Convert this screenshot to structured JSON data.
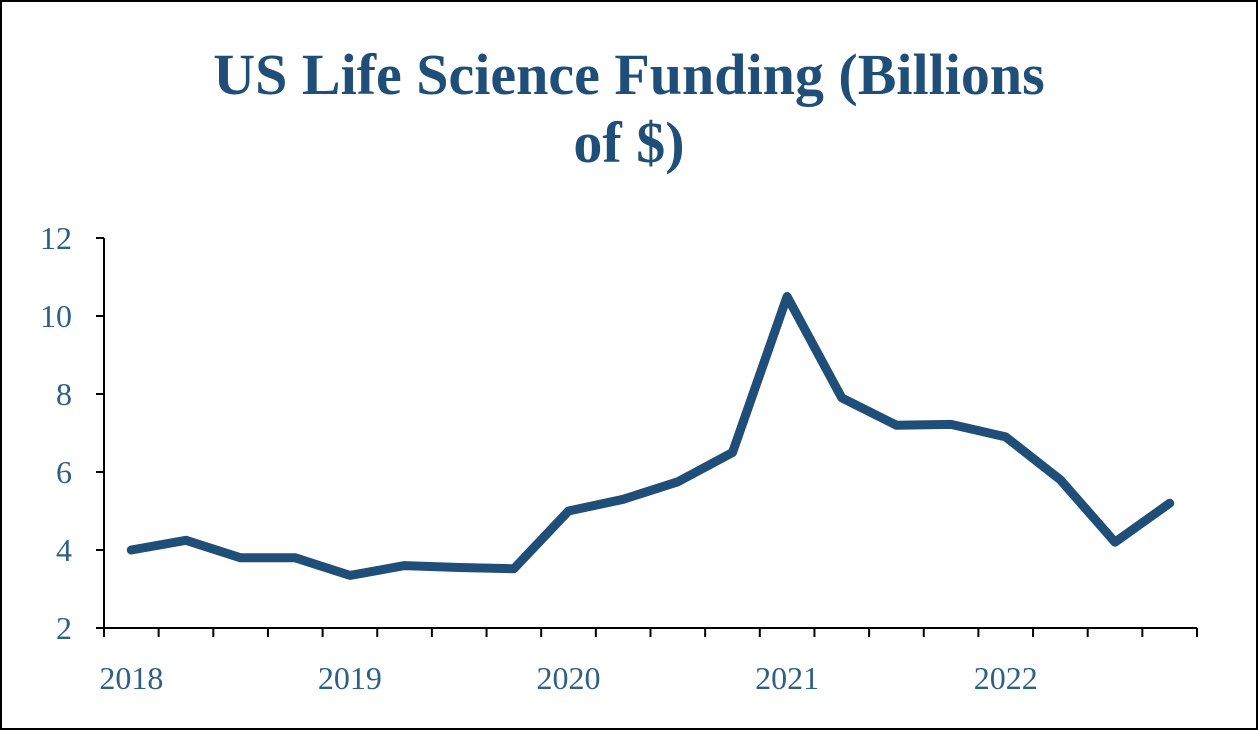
{
  "chart_data": {
    "type": "line",
    "title_lines": [
      "US Life Science Funding (Billions",
      "of $)"
    ],
    "xlabel": "",
    "ylabel": "",
    "ylim": [
      2,
      12
    ],
    "yticks": [
      2,
      4,
      6,
      8,
      10,
      12
    ],
    "year_labels": [
      "2018",
      "2019",
      "2020",
      "2021",
      "2022"
    ],
    "quarters_per_year": 4,
    "series": [
      {
        "name": "US Life Science Funding",
        "color": "#1f4e79",
        "values": [
          4.0,
          4.25,
          3.8,
          3.8,
          3.35,
          3.6,
          3.55,
          3.52,
          5.0,
          5.3,
          5.75,
          6.5,
          10.5,
          7.9,
          7.2,
          7.22,
          6.9,
          5.8,
          4.2,
          5.2
        ]
      }
    ],
    "grid": false
  }
}
